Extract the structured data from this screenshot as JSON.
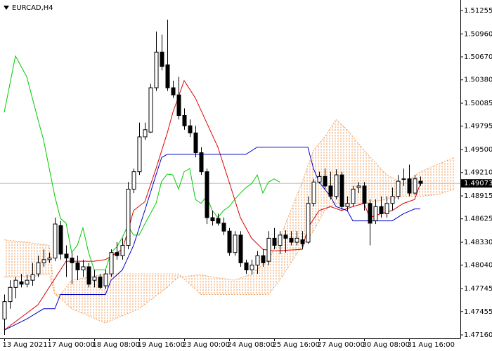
{
  "chart_data": {
    "type": "candlestick",
    "title": "EURCAD,H4",
    "categories": [
      "13 Aug 2021",
      null,
      null,
      null,
      null,
      null,
      null,
      null,
      "17 Aug 00:00",
      null,
      null,
      null,
      null,
      null,
      null,
      null,
      "18 Aug 08:00",
      null,
      null,
      null,
      null,
      null,
      null,
      null,
      "19 Aug 16:00",
      null,
      null,
      null,
      null,
      null,
      null,
      null,
      "23 Aug 00:00",
      null,
      null,
      null,
      null,
      null,
      null,
      null,
      "24 Aug 08:00",
      null,
      null,
      null,
      null,
      null,
      null,
      null,
      "25 Aug 16:00",
      null,
      null,
      null,
      null,
      null,
      null,
      null,
      "27 Aug 00:00",
      null,
      null,
      null,
      null,
      null,
      null,
      null,
      "30 Aug 08:00",
      null,
      null,
      null,
      null,
      null,
      null,
      null,
      "31 Aug 16:00",
      null,
      null
    ],
    "open": [
      1.4736,
      1.4758,
      1.4776,
      1.4783,
      1.478,
      1.4785,
      1.4793,
      1.4807,
      1.4811,
      1.4813,
      1.4854,
      1.4818,
      1.4813,
      1.4807,
      1.4798,
      1.4802,
      1.4785,
      1.4789,
      1.4778,
      1.4793,
      1.482,
      1.4816,
      1.4829,
      1.49,
      1.4922,
      1.4966,
      1.4972,
      1.5028,
      1.5073,
      1.5057,
      1.5028,
      1.5019,
      1.4993,
      1.498,
      1.4971,
      1.4946,
      1.4922,
      1.4864,
      1.4863,
      1.4857,
      1.4847,
      1.482,
      1.4842,
      1.4807,
      1.4798,
      1.4804,
      1.4816,
      1.4809,
      1.4838,
      1.4829,
      1.4842,
      1.4838,
      1.4833,
      1.4836,
      1.4833,
      1.4882,
      1.4909,
      1.4916,
      1.4904,
      1.4891,
      1.4918,
      1.4878,
      1.4882,
      1.4902,
      1.4904,
      1.4882,
      1.486,
      1.4878,
      1.4869,
      1.4882,
      1.4891,
      1.4913,
      1.4913,
      1.4895,
      1.491
    ],
    "high": [
      1.4767,
      1.4785,
      1.4789,
      1.4793,
      1.4792,
      1.4807,
      1.4816,
      1.4824,
      1.482,
      1.4864,
      1.486,
      1.4829,
      1.482,
      1.4816,
      1.4811,
      1.4807,
      1.4798,
      1.4793,
      1.4798,
      1.4824,
      1.4833,
      1.4838,
      1.4909,
      1.4926,
      1.4984,
      1.4984,
      1.5033,
      1.5099,
      1.5095,
      1.5114,
      1.5037,
      1.5042,
      1.5002,
      1.4988,
      1.498,
      1.4953,
      1.4926,
      1.4873,
      1.4869,
      1.4864,
      1.4851,
      1.4847,
      1.4847,
      1.4811,
      1.4811,
      1.4822,
      1.4824,
      1.4847,
      1.4851,
      1.4847,
      1.4848,
      1.4847,
      1.4847,
      1.4847,
      1.4891,
      1.4913,
      1.4922,
      1.4926,
      1.4922,
      1.4925,
      1.4922,
      1.4891,
      1.4904,
      1.4909,
      1.4909,
      1.4887,
      1.4887,
      1.4891,
      1.4891,
      1.4902,
      1.4918,
      1.4926,
      1.4931,
      1.4918,
      1.4916
    ],
    "low": [
      1.4716,
      1.4749,
      1.4762,
      1.4776,
      1.4776,
      1.4778,
      1.4789,
      1.4802,
      1.4807,
      1.4809,
      1.4811,
      1.4789,
      1.478,
      1.4785,
      1.4789,
      1.4776,
      1.4776,
      1.4774,
      1.4774,
      1.4789,
      1.4811,
      1.4811,
      1.4824,
      1.4895,
      1.4918,
      1.4962,
      1.4971,
      1.5024,
      1.505,
      1.5024,
      1.5015,
      1.4988,
      1.4975,
      1.4966,
      1.494,
      1.4918,
      1.4856,
      1.4854,
      1.4854,
      1.4842,
      1.4816,
      1.4816,
      1.4802,
      1.4793,
      1.4792,
      1.4793,
      1.4802,
      1.4804,
      1.4824,
      1.4818,
      1.482,
      1.4829,
      1.4829,
      1.4824,
      1.4831,
      1.4878,
      1.4907,
      1.49,
      1.4887,
      1.4887,
      1.4873,
      1.4873,
      1.4878,
      1.4895,
      1.4873,
      1.4829,
      1.4856,
      1.4864,
      1.4864,
      1.4873,
      1.4887,
      1.4904,
      1.4891,
      1.4893,
      1.4904
    ],
    "close": [
      1.4758,
      1.4776,
      1.4785,
      1.478,
      1.4785,
      1.4792,
      1.4807,
      1.4811,
      1.4813,
      1.4856,
      1.4818,
      1.4813,
      1.4807,
      1.4798,
      1.4802,
      1.478,
      1.4789,
      1.4776,
      1.4793,
      1.482,
      1.4816,
      1.4829,
      1.49,
      1.4922,
      1.4966,
      1.4975,
      1.5028,
      1.5073,
      1.5055,
      1.5028,
      1.5019,
      1.4993,
      1.498,
      1.4971,
      1.4946,
      1.4922,
      1.4864,
      1.486,
      1.4857,
      1.4847,
      1.482,
      1.4842,
      1.4807,
      1.4798,
      1.4804,
      1.4816,
      1.4807,
      1.4838,
      1.4829,
      1.4842,
      1.4838,
      1.4833,
      1.4838,
      1.4831,
      1.4882,
      1.4909,
      1.4916,
      1.4904,
      1.4891,
      1.4918,
      1.4878,
      1.4882,
      1.49,
      1.4904,
      1.4882,
      1.4857,
      1.4878,
      1.4869,
      1.4882,
      1.4891,
      1.491,
      1.4913,
      1.4895,
      1.4913,
      1.49073
    ],
    "up_color": "#ffffff",
    "down_color": "#000000",
    "lines": [
      {
        "color": "#e00000",
        "x": [
          0,
          6,
          11,
          16,
          18,
          21,
          22,
          23,
          25,
          27,
          29,
          30,
          32,
          34,
          36,
          38,
          40,
          42,
          44,
          46,
          48,
          53,
          54,
          56,
          58,
          60,
          62,
          64,
          65,
          67,
          69,
          71,
          73,
          74
        ],
        "values": [
          1.4722,
          1.4754,
          1.4809,
          1.4809,
          1.4811,
          1.4824,
          1.4847,
          1.4873,
          1.4884,
          1.4926,
          1.4971,
          1.4997,
          1.5037,
          1.5015,
          1.4984,
          1.4953,
          1.4909,
          1.4864,
          1.4838,
          1.4824,
          1.4822,
          1.4824,
          1.4851,
          1.4873,
          1.4878,
          1.4873,
          1.4878,
          1.4882,
          1.4864,
          1.4869,
          1.4873,
          1.4882,
          1.4887,
          1.4907
        ]
      },
      {
        "color": "#0000cc",
        "x": [
          0,
          4,
          7,
          9,
          10,
          18,
          19,
          21,
          23,
          25,
          27,
          28,
          29,
          43,
          45,
          54,
          55,
          56,
          58,
          59,
          61,
          62,
          69,
          71,
          73,
          74
        ],
        "values": [
          1.4722,
          1.4736,
          1.4749,
          1.4749,
          1.4767,
          1.4767,
          1.4785,
          1.4798,
          1.4829,
          1.4873,
          1.4918,
          1.494,
          1.4944,
          1.4944,
          1.4953,
          1.4953,
          1.4926,
          1.4909,
          1.4891,
          1.4878,
          1.4873,
          1.486,
          1.486,
          1.4869,
          1.4875,
          1.4875
        ]
      },
      {
        "color": "#00cc00",
        "x": [
          0,
          2,
          4,
          6,
          7,
          9,
          10,
          11,
          12,
          13,
          14,
          15,
          16,
          18,
          19,
          20,
          21,
          22,
          23,
          24,
          25,
          27,
          28,
          29,
          30,
          31,
          32,
          33,
          34,
          35,
          36,
          37,
          38,
          39,
          40,
          41,
          42,
          43,
          44,
          45,
          46,
          47,
          48,
          49
        ],
        "values": [
          1.4997,
          1.5068,
          1.5042,
          1.4988,
          1.4962,
          1.4891,
          1.4863,
          1.4857,
          1.482,
          1.4829,
          1.4851,
          1.482,
          1.4798,
          1.4798,
          1.482,
          1.4827,
          1.4839,
          1.4854,
          1.4842,
          1.4842,
          1.4856,
          1.4882,
          1.491,
          1.4919,
          1.4918,
          1.49,
          1.4922,
          1.4926,
          1.4887,
          1.4882,
          1.4891,
          1.4873,
          1.4864,
          1.4873,
          1.4878,
          1.4887,
          1.4895,
          1.4902,
          1.4907,
          1.4918,
          1.4895,
          1.4909,
          1.4913,
          1.4909
        ]
      }
    ],
    "cloud": {
      "color": "#f0a060",
      "x": [
        0,
        4,
        8,
        9,
        10,
        12,
        18,
        24,
        29,
        31,
        35,
        37,
        41,
        44,
        47,
        49,
        53,
        55,
        57,
        59,
        61,
        64,
        68,
        71,
        74,
        77,
        80
      ],
      "span_a": [
        1.4836,
        1.4833,
        1.4829,
        1.4767,
        1.4762,
        1.4749,
        1.4731,
        1.4749,
        1.4776,
        1.4789,
        1.4792,
        1.4789,
        1.4785,
        1.4793,
        1.4811,
        1.4838,
        1.4909,
        1.4949,
        1.4966,
        1.4988,
        1.4975,
        1.4949,
        1.4918,
        1.4907,
        1.4922,
        1.4931,
        1.494
      ],
      "span_b": [
        1.4789,
        1.4789,
        1.4793,
        1.4767,
        1.4767,
        1.4785,
        1.4793,
        1.4793,
        1.4793,
        1.4793,
        1.4767,
        1.4767,
        1.4767,
        1.4767,
        1.4767,
        1.4785,
        1.4829,
        1.4847,
        1.4873,
        1.4882,
        1.4882,
        1.4882,
        1.4887,
        1.4891,
        1.4891,
        1.4893,
        1.49
      ]
    },
    "last_price": 1.49073,
    "xlim": [
      -0.75,
      81.125
    ],
    "ylim": [
      1.47116,
      1.51388
    ],
    "yticks": [
      1.51255,
      {
        "value": 1.5096,
        "label": "1.50960"
      },
      {
        "value": 1.5067,
        "label": "1.50670"
      },
      {
        "value": 1.5038,
        "label": "1.50380"
      },
      1.50085,
      1.49795,
      {
        "value": 1.495,
        "label": "1.49500"
      },
      {
        "value": 1.4921,
        "label": "1.49210"
      },
      1.48915,
      1.48625,
      {
        "value": 1.4833,
        "label": "1.48330"
      },
      {
        "value": 1.4804,
        "label": "1.48040"
      },
      1.47745,
      1.47455,
      {
        "value": 1.4716,
        "label": "1.47160"
      }
    ]
  }
}
